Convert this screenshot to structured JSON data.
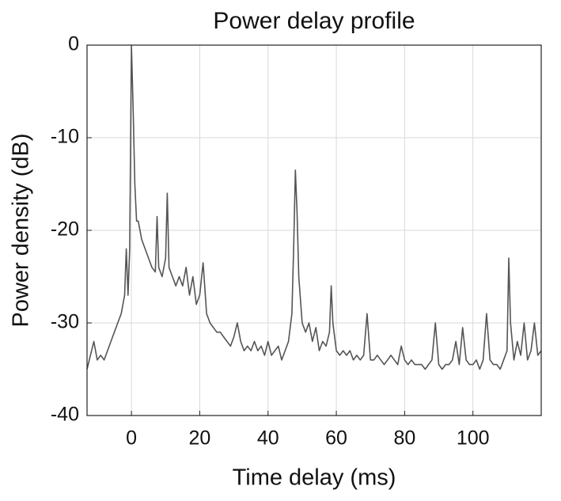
{
  "chart_data": {
    "type": "line",
    "title": "Power delay profile",
    "x_label": "Time delay (ms)",
    "y_label": "Power density (dB)",
    "color": "#555555",
    "grid": true,
    "xlim": [
      -13,
      120
    ],
    "ylim": [
      -40,
      0
    ],
    "xticks": [
      0,
      20,
      40,
      60,
      80,
      100
    ],
    "yticks": [
      -40,
      -30,
      -20,
      -10,
      0
    ],
    "x": [
      -13,
      -12,
      -11,
      -10,
      -9,
      -8,
      -7,
      -6,
      -5,
      -4,
      -3,
      -2,
      -1.5,
      -1,
      -0.5,
      0,
      0.5,
      1,
      1.5,
      2,
      3,
      4,
      5,
      6,
      7,
      7.5,
      8,
      9,
      10,
      10.5,
      11,
      12,
      13,
      14,
      15,
      16,
      17,
      18,
      19,
      20,
      21,
      22,
      23,
      24,
      25,
      26,
      27,
      28,
      29,
      30,
      31,
      32,
      33,
      34,
      35,
      36,
      37,
      38,
      39,
      40,
      41,
      42,
      43,
      44,
      45,
      46,
      47,
      47.5,
      48,
      48.5,
      49,
      50,
      51,
      52,
      53,
      54,
      55,
      56,
      57,
      58,
      58.5,
      59,
      60,
      61,
      62,
      63,
      64,
      65,
      66,
      67,
      68,
      69,
      70,
      71,
      72,
      73,
      74,
      75,
      76,
      77,
      78,
      79,
      80,
      81,
      82,
      83,
      84,
      85,
      86,
      87,
      88,
      89,
      90,
      91,
      92,
      93,
      94,
      95,
      96,
      97,
      98,
      99,
      100,
      101,
      102,
      103,
      104,
      105,
      106,
      107,
      108,
      109,
      110,
      110.5,
      111,
      112,
      113,
      114,
      115,
      116,
      117,
      118,
      119,
      120
    ],
    "values": [
      -35,
      -33.5,
      -32,
      -34,
      -33.5,
      -34,
      -33,
      -32,
      -31,
      -30,
      -29,
      -27,
      -22,
      -27,
      -22,
      0,
      -7,
      -15,
      -19,
      -19,
      -21,
      -22,
      -23,
      -24,
      -24.5,
      -18.5,
      -24,
      -25,
      -23,
      -16,
      -24,
      -25,
      -26,
      -25,
      -26,
      -24,
      -27,
      -25,
      -28,
      -27,
      -23.5,
      -29,
      -30,
      -30.5,
      -31,
      -31,
      -31.5,
      -32,
      -32.5,
      -31.5,
      -30,
      -32,
      -33,
      -32.5,
      -33,
      -32,
      -33,
      -32.5,
      -33.5,
      -32,
      -33.5,
      -33,
      -32.5,
      -34,
      -33,
      -32,
      -29,
      -22,
      -13.5,
      -18,
      -25,
      -30,
      -31,
      -30,
      -32,
      -30.5,
      -33,
      -32,
      -32.5,
      -31,
      -26,
      -30,
      -33,
      -33.5,
      -33,
      -33.5,
      -33,
      -34,
      -33.5,
      -34,
      -33.5,
      -29,
      -34,
      -34,
      -33.5,
      -34,
      -34.5,
      -34,
      -33.5,
      -34,
      -34.5,
      -32.5,
      -34,
      -34.5,
      -34,
      -34.5,
      -34.5,
      -34.5,
      -35,
      -34.5,
      -34,
      -30,
      -34.5,
      -35,
      -34.5,
      -34.5,
      -34,
      -32,
      -34.5,
      -30.5,
      -34,
      -34.5,
      -34.5,
      -34,
      -35,
      -34,
      -29,
      -34,
      -34.5,
      -34.5,
      -35,
      -34,
      -33,
      -23,
      -30,
      -34,
      -32,
      -33.5,
      -30,
      -34,
      -33,
      -30,
      -33.5,
      -33
    ]
  }
}
